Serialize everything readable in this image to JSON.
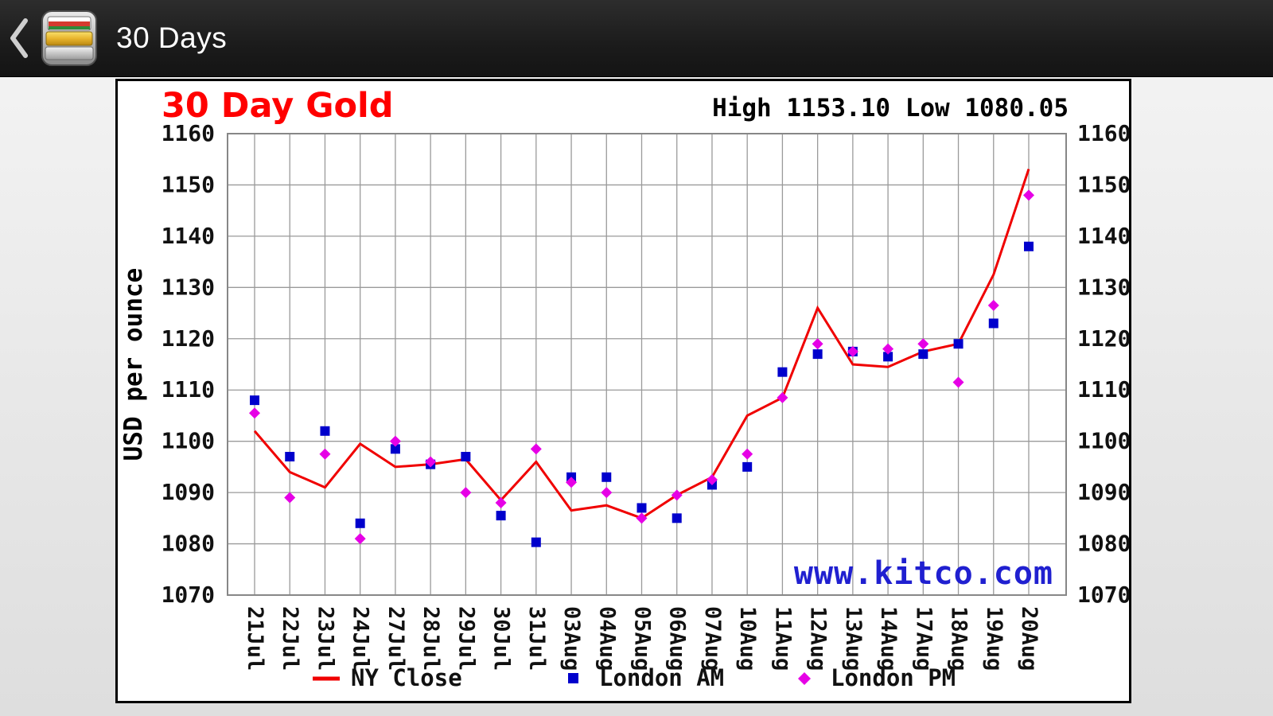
{
  "app_bar": {
    "title": "30 Days"
  },
  "chart": {
    "title": "30 Day Gold",
    "high_low_text": "High 1153.10 Low 1080.05",
    "watermark": "www.kitco.com",
    "colors": {
      "ny_close": "#f00000",
      "london_am": "#0000cc",
      "london_pm": "#e600e6",
      "watermark_blue": "#2020d0",
      "title_red": "#ff0000",
      "grid_gray": "#9a9a9a"
    }
  },
  "chart_data": {
    "type": "line",
    "title": "30 Day Gold",
    "high": 1153.1,
    "low": 1080.05,
    "ylabel": "USD per ounce",
    "ylim": [
      1070,
      1160
    ],
    "y_ticks": [
      1070,
      1080,
      1090,
      1100,
      1110,
      1120,
      1130,
      1140,
      1150,
      1160
    ],
    "grid": true,
    "legend_position": "bottom",
    "categories": [
      "21Jul",
      "22Jul",
      "23Jul",
      "24Jul",
      "27Jul",
      "28Jul",
      "29Jul",
      "30Jul",
      "31Jul",
      "03Aug",
      "04Aug",
      "05Aug",
      "06Aug",
      "07Aug",
      "10Aug",
      "11Aug",
      "12Aug",
      "13Aug",
      "14Aug",
      "17Aug",
      "18Aug",
      "19Aug",
      "20Aug"
    ],
    "series": [
      {
        "name": "NY Close",
        "type": "line",
        "marker": "line",
        "color": "#f00000",
        "values": [
          1102.0,
          1094.0,
          1091.0,
          1099.5,
          1095.0,
          1095.5,
          1096.5,
          1088.5,
          1096.0,
          1086.5,
          1087.5,
          1085.0,
          1089.5,
          1093.0,
          1105.0,
          1108.5,
          1126.0,
          1115.0,
          1114.5,
          1117.5,
          1119.0,
          1132.5,
          1153.1
        ]
      },
      {
        "name": "London AM",
        "type": "scatter",
        "marker": "square",
        "color": "#0000cc",
        "values": [
          1108.0,
          1097.0,
          1102.0,
          1084.0,
          1098.5,
          1095.5,
          1097.0,
          1085.5,
          1080.3,
          1093.0,
          1093.0,
          1087.0,
          1085.0,
          1091.5,
          1095.0,
          1113.5,
          1117.0,
          1117.5,
          1116.5,
          1117.0,
          1119.0,
          1123.0,
          1138.0
        ]
      },
      {
        "name": "London PM",
        "type": "scatter",
        "marker": "diamond",
        "color": "#e600e6",
        "values": [
          1105.5,
          1089.0,
          1097.5,
          1081.0,
          1100.0,
          1096.0,
          1090.0,
          1088.0,
          1098.5,
          1092.0,
          1090.0,
          1085.0,
          1089.5,
          1092.5,
          1097.5,
          1108.5,
          1119.0,
          1117.5,
          1118.0,
          1119.0,
          1111.5,
          1126.5,
          1148.0
        ]
      }
    ]
  }
}
